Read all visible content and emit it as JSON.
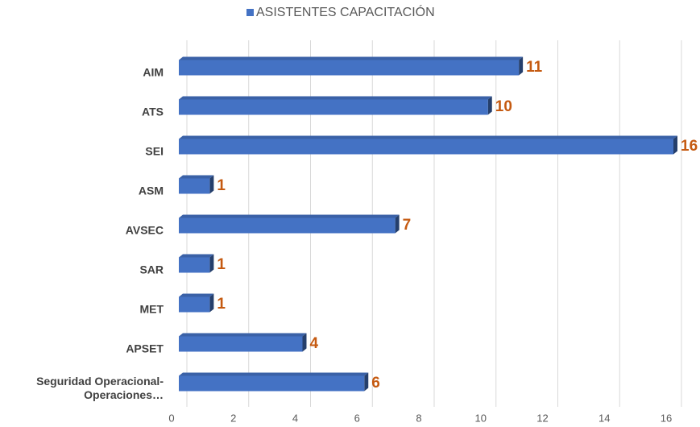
{
  "chart_data": {
    "type": "bar",
    "orientation": "horizontal",
    "categories": [
      "AIM",
      "ATS",
      "SEI",
      "ASM",
      "AVSEC",
      "SAR",
      "MET",
      "APSET",
      "Seguridad Operacional-Operaciones…"
    ],
    "series": [
      {
        "name": "ASISTENTES CAPACITACIÓN",
        "color": "#4472c4",
        "values": [
          11,
          10,
          16,
          1,
          7,
          1,
          1,
          4,
          6
        ]
      }
    ],
    "value_label_color": "#c55a11",
    "xlim": [
      0,
      16
    ],
    "xticks": [
      0,
      2,
      4,
      6,
      8,
      10,
      12,
      14,
      16
    ],
    "grid": true,
    "legend": "top"
  }
}
